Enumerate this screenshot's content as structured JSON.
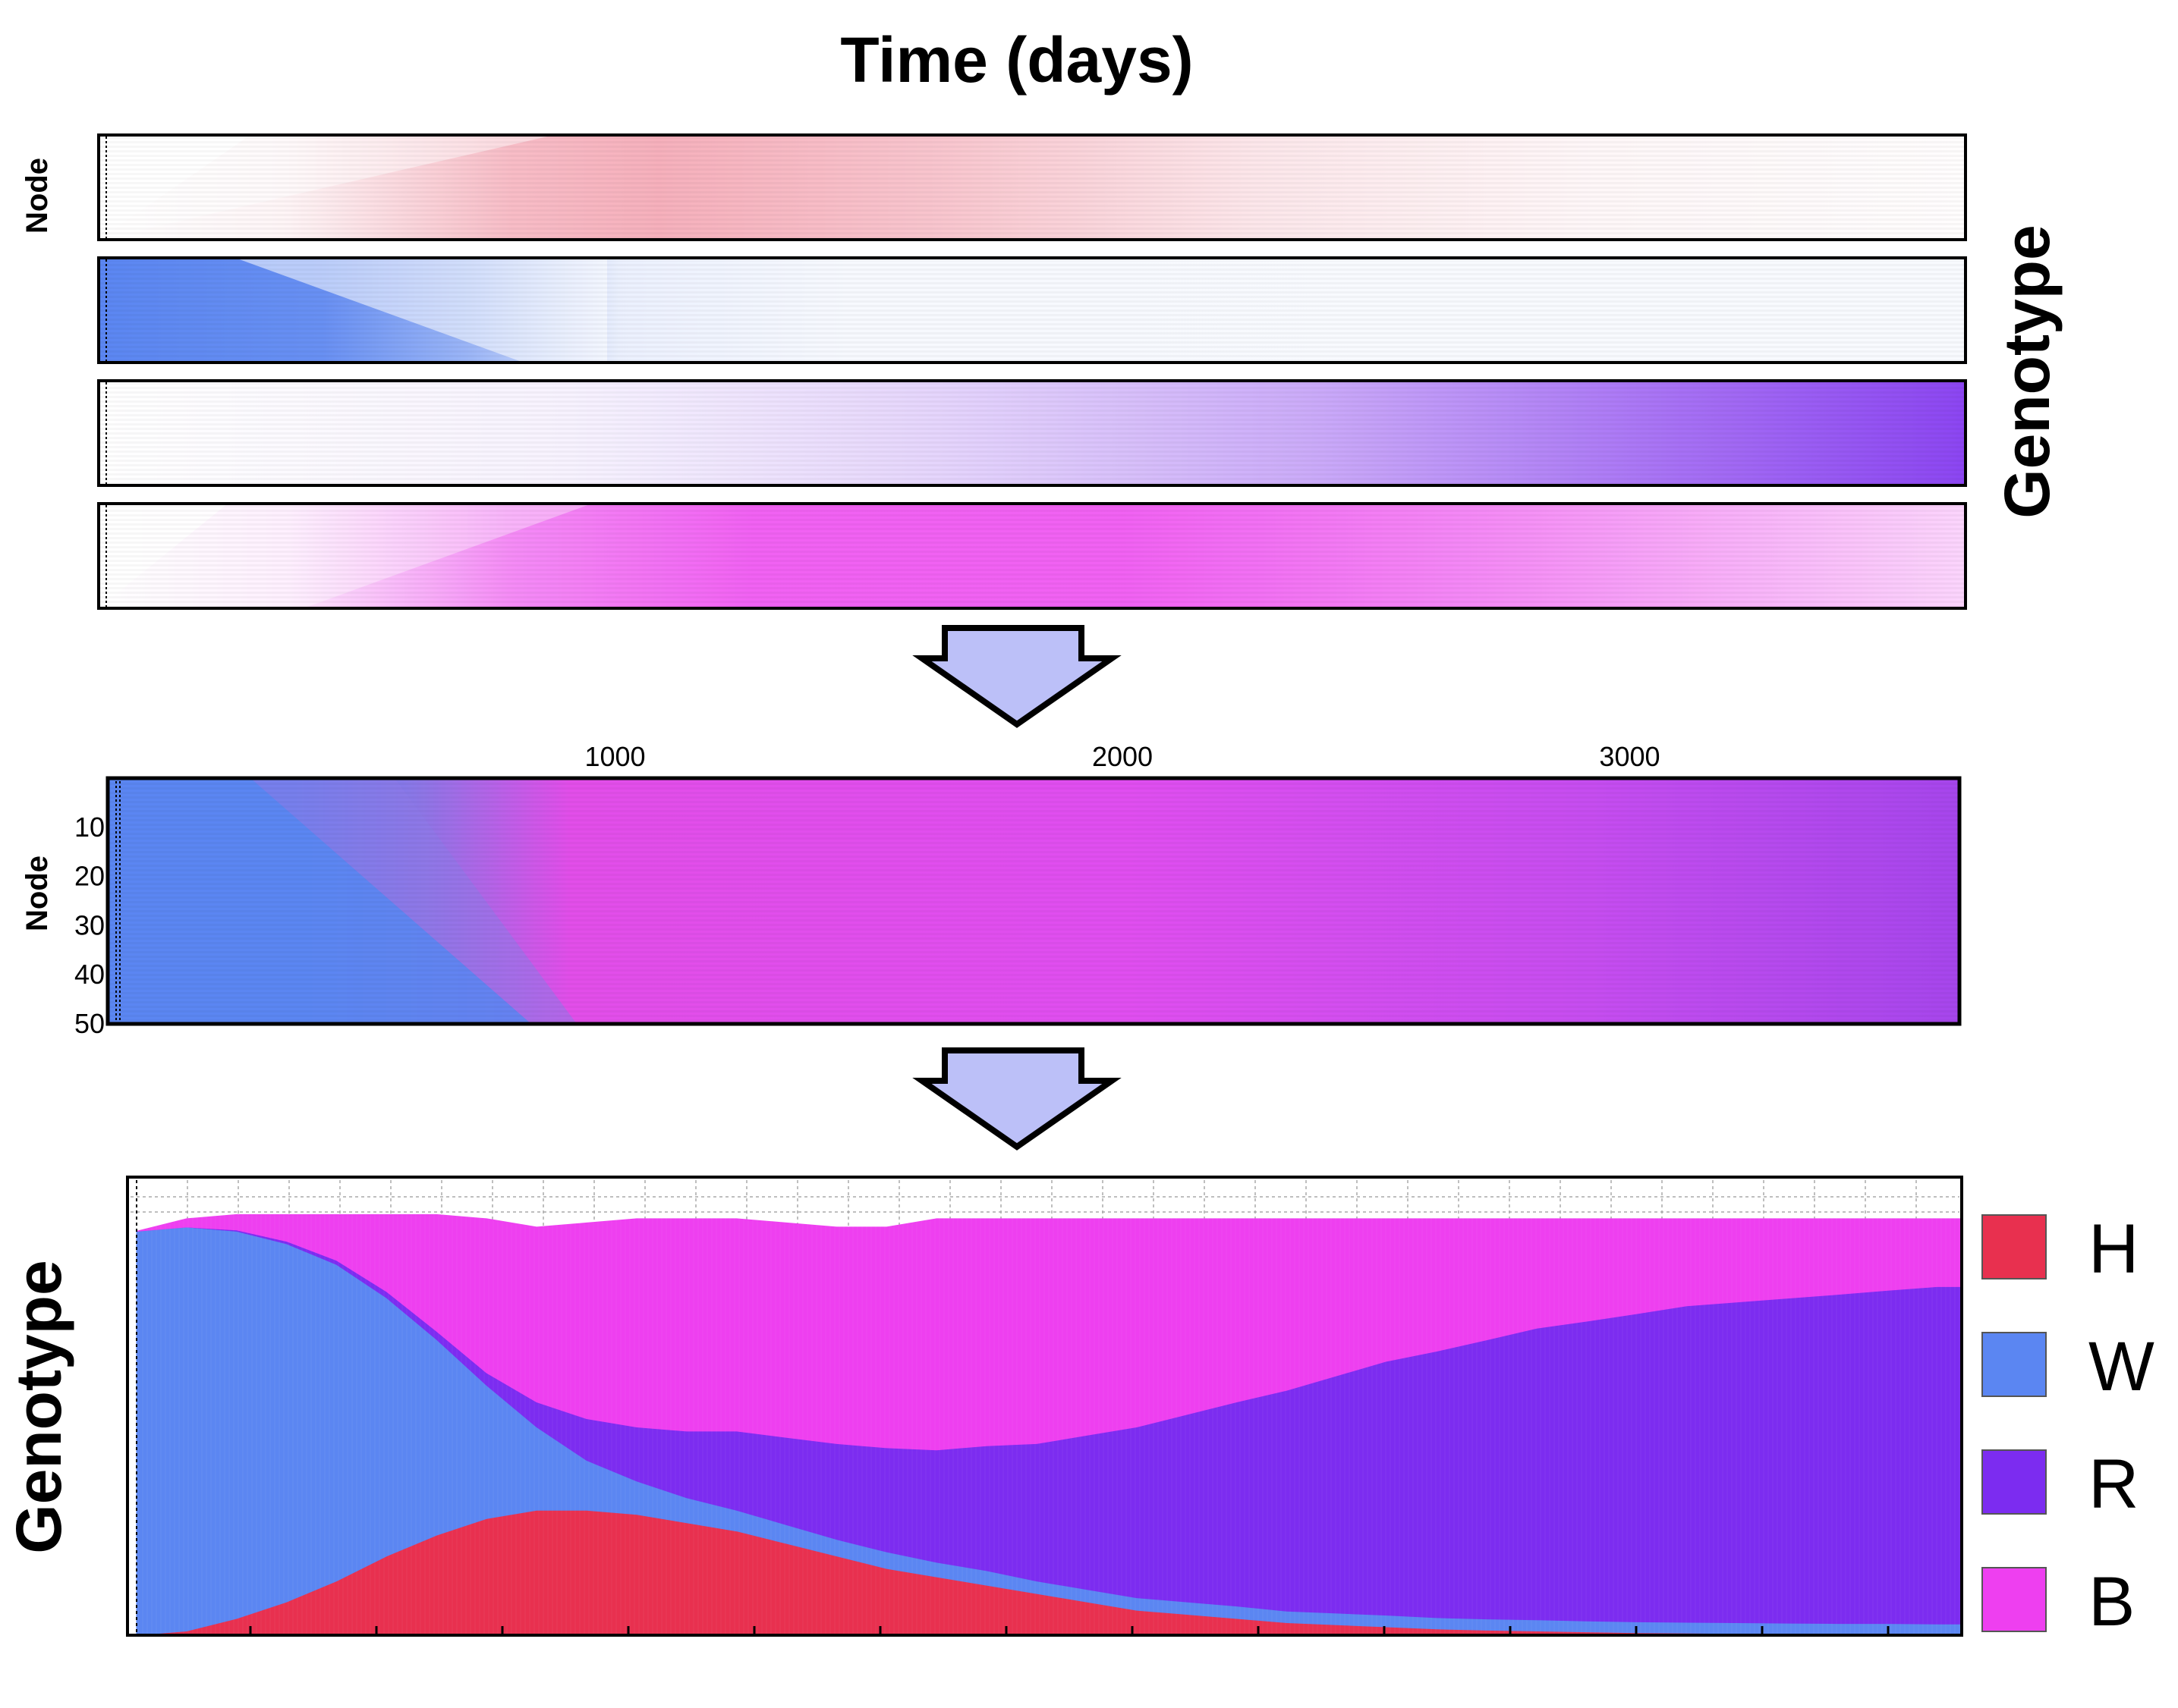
{
  "title": "Time (days)",
  "right_label": "Genotype",
  "panel_ylabel": "Node",
  "legend": [
    {
      "key": "H",
      "color": "#e8304f"
    },
    {
      "key": "W",
      "color": "#5b86f2"
    },
    {
      "key": "R",
      "color": "#7c2cf0"
    },
    {
      "key": "B",
      "color": "#ee3ff0"
    }
  ],
  "chart_data": [
    {
      "type": "heatmap",
      "description_key": "per-genotype node x time frequency panels",
      "rows": [
        "H",
        "W",
        "R",
        "B"
      ],
      "colors": {
        "H": "#e8304f",
        "W": "#5b86f2",
        "R": "#7c2cf0",
        "B": "#ee3ff0"
      },
      "ylabel": "Node",
      "xlim": [
        0,
        3650
      ],
      "nodes": 50
    },
    {
      "type": "heatmap",
      "description_key": "combined genotype heatmap",
      "ylabel": "Node",
      "xlim": [
        0,
        3650
      ],
      "xticks": [
        1000,
        2000,
        3000
      ],
      "yticks": [
        10,
        20,
        30,
        40,
        50
      ]
    },
    {
      "type": "area",
      "ylabel": "Genotype",
      "xlim": [
        0,
        3650
      ],
      "ylim": [
        0,
        1.1
      ],
      "x": [
        0,
        100,
        200,
        300,
        400,
        500,
        600,
        700,
        800,
        900,
        1000,
        1100,
        1200,
        1300,
        1400,
        1500,
        1600,
        1700,
        1800,
        1900,
        2000,
        2100,
        2200,
        2300,
        2400,
        2500,
        2600,
        2700,
        2800,
        2900,
        3000,
        3100,
        3200,
        3300,
        3400,
        3500,
        3600,
        3650
      ],
      "series": [
        {
          "name": "H",
          "values": [
            0.0,
            0.01,
            0.04,
            0.08,
            0.13,
            0.19,
            0.24,
            0.28,
            0.3,
            0.3,
            0.29,
            0.27,
            0.25,
            0.22,
            0.19,
            0.16,
            0.14,
            0.12,
            0.1,
            0.08,
            0.06,
            0.05,
            0.04,
            0.03,
            0.025,
            0.02,
            0.015,
            0.012,
            0.01,
            0.008,
            0.006,
            0.005,
            0.004,
            0.003,
            0.002,
            0.002,
            0.001,
            0.001
          ]
        },
        {
          "name": "W",
          "values": [
            0.97,
            0.97,
            0.93,
            0.86,
            0.76,
            0.62,
            0.47,
            0.32,
            0.2,
            0.12,
            0.08,
            0.06,
            0.05,
            0.045,
            0.04,
            0.04,
            0.035,
            0.035,
            0.03,
            0.03,
            0.03,
            0.03,
            0.03,
            0.028,
            0.028,
            0.028,
            0.027,
            0.027,
            0.027,
            0.026,
            0.026,
            0.026,
            0.026,
            0.026,
            0.026,
            0.026,
            0.026,
            0.026
          ]
        },
        {
          "name": "R",
          "values": [
            0.0,
            0.0,
            0.003,
            0.006,
            0.01,
            0.015,
            0.02,
            0.03,
            0.06,
            0.1,
            0.13,
            0.16,
            0.19,
            0.21,
            0.23,
            0.25,
            0.27,
            0.3,
            0.33,
            0.37,
            0.41,
            0.45,
            0.49,
            0.53,
            0.57,
            0.61,
            0.64,
            0.67,
            0.7,
            0.72,
            0.74,
            0.76,
            0.77,
            0.78,
            0.79,
            0.8,
            0.81,
            0.81
          ]
        },
        {
          "name": "B",
          "values": [
            0.0,
            0.02,
            0.037,
            0.064,
            0.11,
            0.185,
            0.28,
            0.37,
            0.42,
            0.47,
            0.5,
            0.51,
            0.51,
            0.515,
            0.52,
            0.53,
            0.555,
            0.545,
            0.54,
            0.52,
            0.5,
            0.47,
            0.44,
            0.412,
            0.377,
            0.342,
            0.318,
            0.291,
            0.263,
            0.246,
            0.228,
            0.209,
            0.2,
            0.191,
            0.182,
            0.172,
            0.163,
            0.163
          ]
        }
      ]
    }
  ]
}
